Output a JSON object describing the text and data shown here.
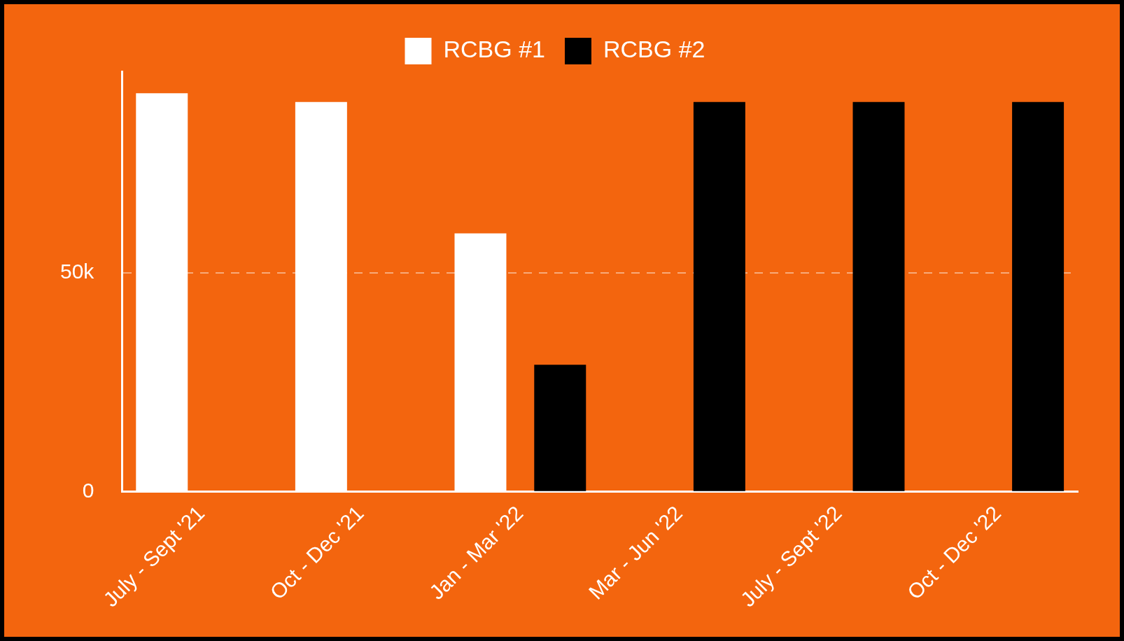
{
  "chart_data": {
    "type": "bar",
    "categories": [
      "July - Sept '21",
      "Oct - Dec '21",
      "Jan - Mar '22",
      "Mar - Jun '22",
      "July - Sept '22",
      "Oct - Dec '22"
    ],
    "series": [
      {
        "name": "RCBG #1",
        "color": "#ffffff",
        "values": [
          91000,
          89000,
          59000,
          null,
          null,
          null
        ]
      },
      {
        "name": "RCBG #2",
        "color": "#000000",
        "values": [
          null,
          null,
          29000,
          89000,
          89000,
          89000
        ]
      }
    ],
    "ylim": [
      0,
      96000
    ],
    "yticks": [
      {
        "value": 0,
        "label": "0"
      },
      {
        "value": 50000,
        "label": "50k"
      }
    ],
    "grid": "y",
    "legend": "top"
  }
}
